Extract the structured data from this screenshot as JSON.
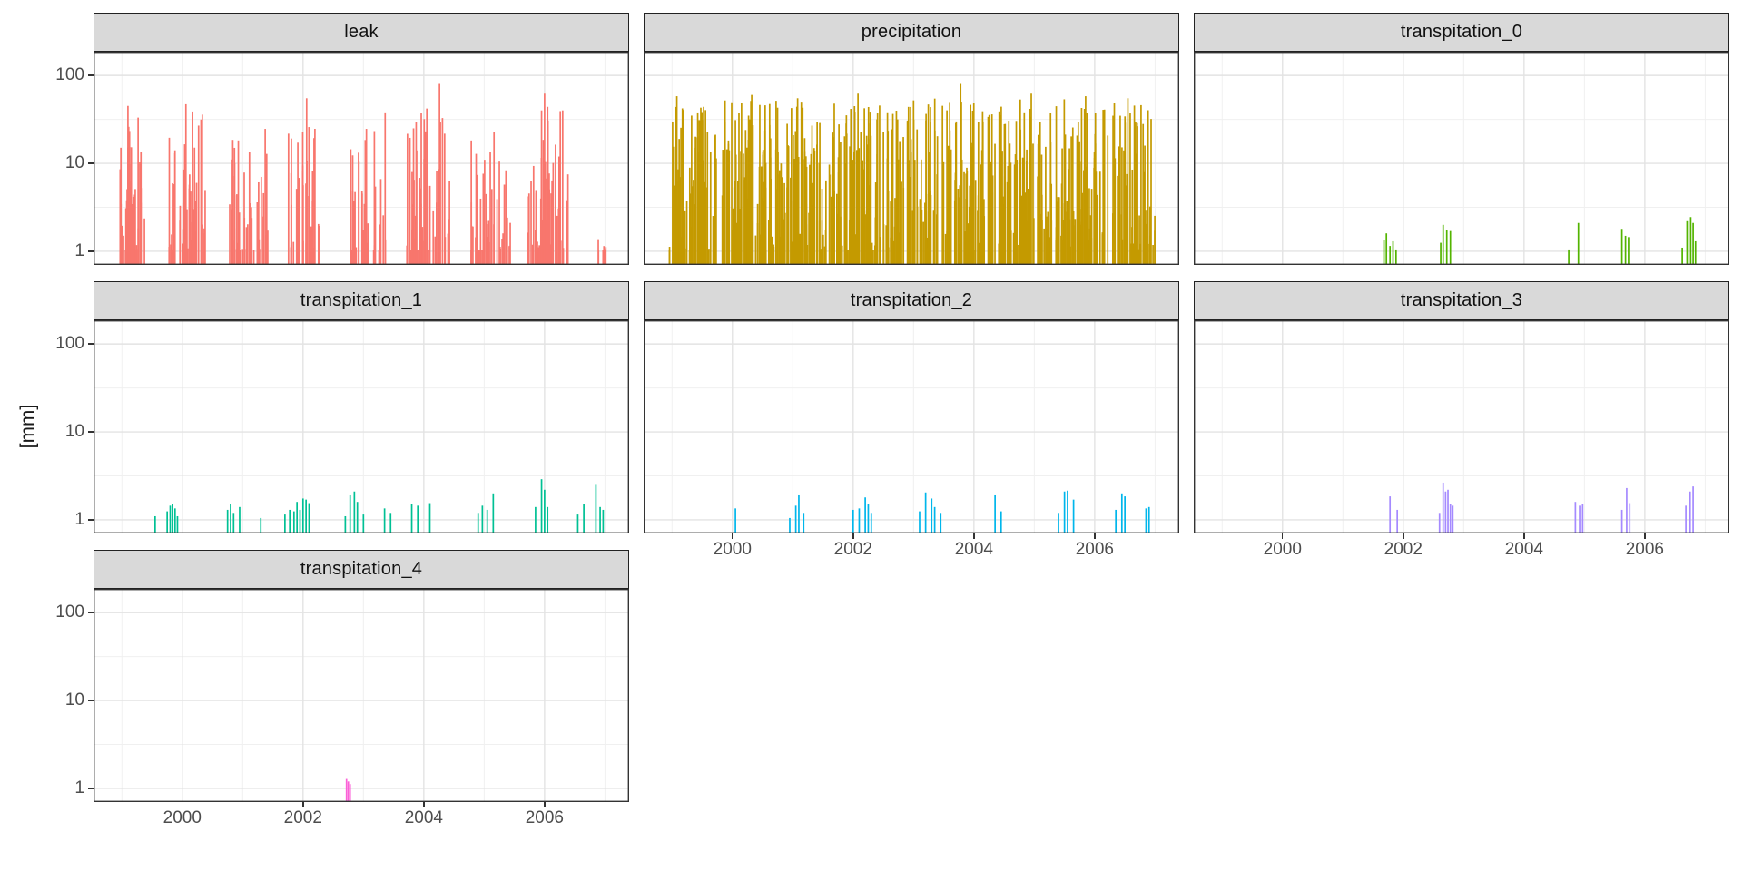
{
  "figure": {
    "y_axis_title": "[mm]",
    "y_tick_labels": [
      "100",
      "10",
      "1"
    ],
    "x_tick_labels": [
      "2000",
      "2002",
      "2004",
      "2006"
    ],
    "colors": {
      "strip_background": "#D9D9D9",
      "panel_border": "#333333",
      "grid_major": "#E3E3E3",
      "grid_minor": "#F0F0F0",
      "axis_text": "#4D4D4D",
      "tick_mark": "#333333"
    }
  },
  "chart_meta": {
    "type": "bar",
    "facet_layout": "wrap-3-columns",
    "x_domain": [
      1998.53,
      2007.4
    ],
    "x_major_breaks": [
      2000,
      2002,
      2004,
      2006
    ],
    "x_minor_breaks": [
      1999,
      2001,
      2003,
      2005,
      2007
    ],
    "y_scale": "log10",
    "y_domain": [
      0.7,
      186
    ],
    "y_major_breaks": [
      1,
      10,
      100
    ],
    "y_minor_breaks": [
      3.162,
      31.62
    ],
    "grid": true,
    "legend": "none"
  },
  "chart_data": [
    {
      "facet": "leak",
      "geom": "col",
      "color": "#F8766D",
      "mode": "clusters",
      "seed": 11,
      "height_shape": 1.7,
      "clusters": [
        [
          1998.95,
          1999.38,
          42,
          38
        ],
        [
          1999.78,
          2000.38,
          48,
          40
        ],
        [
          2000.78,
          2001.42,
          40,
          26
        ],
        [
          2001.75,
          2002.32,
          36,
          30
        ],
        [
          2002.78,
          2003.42,
          36,
          30
        ],
        [
          2003.72,
          2004.45,
          46,
          45
        ],
        [
          2004.78,
          2005.45,
          40,
          26
        ],
        [
          2005.72,
          2006.42,
          46,
          45
        ],
        [
          2006.88,
          2007.02,
          6,
          1.4
        ]
      ],
      "peaks": [
        [
          1999.1,
          45
        ],
        [
          2000.06,
          47
        ],
        [
          2002.06,
          55
        ],
        [
          2003.36,
          38
        ],
        [
          2004.26,
          80
        ],
        [
          2004.05,
          42
        ],
        [
          2005.95,
          40
        ],
        [
          2006.0,
          62
        ],
        [
          2006.3,
          40
        ]
      ]
    },
    {
      "facet": "precipitation",
      "geom": "col",
      "color": "#C49A00",
      "mode": "clusters",
      "seed": 7,
      "height_shape": 1.25,
      "clusters": [
        [
          1998.95,
          1999.75,
          70,
          45
        ],
        [
          1999.78,
          2000.7,
          80,
          55
        ],
        [
          2000.72,
          2001.55,
          75,
          58
        ],
        [
          2001.6,
          2002.45,
          80,
          55
        ],
        [
          2002.5,
          2003.4,
          80,
          55
        ],
        [
          2003.45,
          2004.35,
          80,
          52
        ],
        [
          2004.4,
          2005.3,
          80,
          58
        ],
        [
          2005.35,
          2006.25,
          80,
          58
        ],
        [
          2006.3,
          2007.0,
          65,
          50
        ]
      ],
      "peaks": [
        [
          1999.08,
          58
        ],
        [
          2000.32,
          60
        ],
        [
          2001.08,
          55
        ],
        [
          2002.08,
          62
        ],
        [
          2003.0,
          52
        ],
        [
          2003.78,
          80
        ],
        [
          2004.95,
          62
        ],
        [
          2005.85,
          58
        ],
        [
          2006.55,
          55
        ]
      ]
    },
    {
      "facet": "transpitation_0",
      "geom": "col",
      "color": "#53B400",
      "mode": "points",
      "bars": [
        [
          2001.68,
          1.35
        ],
        [
          2001.72,
          1.6
        ],
        [
          2001.78,
          1.15
        ],
        [
          2001.83,
          1.3
        ],
        [
          2001.88,
          1.05
        ],
        [
          2002.62,
          1.25
        ],
        [
          2002.66,
          2.0
        ],
        [
          2002.72,
          1.75
        ],
        [
          2002.78,
          1.7
        ],
        [
          2004.74,
          1.05
        ],
        [
          2004.9,
          2.1
        ],
        [
          2005.62,
          1.8
        ],
        [
          2005.68,
          1.5
        ],
        [
          2005.73,
          1.45
        ],
        [
          2006.62,
          1.1
        ],
        [
          2006.7,
          2.2
        ],
        [
          2006.76,
          2.45
        ],
        [
          2006.8,
          2.1
        ],
        [
          2006.84,
          1.3
        ]
      ]
    },
    {
      "facet": "transpitation_1",
      "geom": "col",
      "color": "#00C094",
      "mode": "points",
      "bars": [
        [
          1999.55,
          1.1
        ],
        [
          1999.75,
          1.25
        ],
        [
          1999.8,
          1.45
        ],
        [
          1999.84,
          1.5
        ],
        [
          1999.88,
          1.35
        ],
        [
          1999.92,
          1.1
        ],
        [
          2000.75,
          1.3
        ],
        [
          2000.8,
          1.5
        ],
        [
          2000.85,
          1.2
        ],
        [
          2000.95,
          1.4
        ],
        [
          2001.3,
          1.05
        ],
        [
          2001.7,
          1.15
        ],
        [
          2001.78,
          1.3
        ],
        [
          2001.85,
          1.25
        ],
        [
          2001.9,
          1.6
        ],
        [
          2001.95,
          1.3
        ],
        [
          2002.0,
          1.75
        ],
        [
          2002.05,
          1.7
        ],
        [
          2002.1,
          1.55
        ],
        [
          2002.7,
          1.1
        ],
        [
          2002.78,
          1.9
        ],
        [
          2002.85,
          2.1
        ],
        [
          2002.9,
          1.6
        ],
        [
          2003.0,
          1.15
        ],
        [
          2003.35,
          1.35
        ],
        [
          2003.45,
          1.2
        ],
        [
          2003.8,
          1.5
        ],
        [
          2003.9,
          1.45
        ],
        [
          2004.1,
          1.55
        ],
        [
          2004.9,
          1.2
        ],
        [
          2004.97,
          1.45
        ],
        [
          2005.05,
          1.3
        ],
        [
          2005.15,
          2.0
        ],
        [
          2005.85,
          1.4
        ],
        [
          2005.95,
          2.9
        ],
        [
          2006.0,
          2.2
        ],
        [
          2006.05,
          1.4
        ],
        [
          2006.55,
          1.15
        ],
        [
          2006.65,
          1.5
        ],
        [
          2006.85,
          2.5
        ],
        [
          2006.92,
          1.4
        ],
        [
          2006.97,
          1.3
        ]
      ]
    },
    {
      "facet": "transpitation_2",
      "geom": "col",
      "color": "#00B6EB",
      "mode": "points",
      "bars": [
        [
          2000.05,
          1.35
        ],
        [
          2000.95,
          1.05
        ],
        [
          2001.05,
          1.45
        ],
        [
          2001.1,
          1.9
        ],
        [
          2001.18,
          1.2
        ],
        [
          2002.0,
          1.3
        ],
        [
          2002.1,
          1.35
        ],
        [
          2002.2,
          1.8
        ],
        [
          2002.25,
          1.5
        ],
        [
          2002.3,
          1.2
        ],
        [
          2003.1,
          1.25
        ],
        [
          2003.2,
          2.05
        ],
        [
          2003.3,
          1.75
        ],
        [
          2003.35,
          1.4
        ],
        [
          2003.45,
          1.2
        ],
        [
          2004.35,
          1.9
        ],
        [
          2004.45,
          1.25
        ],
        [
          2005.4,
          1.2
        ],
        [
          2005.5,
          2.1
        ],
        [
          2005.55,
          2.15
        ],
        [
          2005.65,
          1.7
        ],
        [
          2006.35,
          1.3
        ],
        [
          2006.45,
          2.0
        ],
        [
          2006.5,
          1.85
        ],
        [
          2006.85,
          1.35
        ],
        [
          2006.9,
          1.4
        ]
      ]
    },
    {
      "facet": "transpitation_3",
      "geom": "col",
      "color": "#A58AFF",
      "mode": "points",
      "bars": [
        [
          2001.78,
          1.85
        ],
        [
          2001.9,
          1.3
        ],
        [
          2002.6,
          1.2
        ],
        [
          2002.66,
          2.65
        ],
        [
          2002.7,
          2.1
        ],
        [
          2002.74,
          2.2
        ],
        [
          2002.78,
          1.5
        ],
        [
          2002.82,
          1.45
        ],
        [
          2004.85,
          1.6
        ],
        [
          2004.92,
          1.45
        ],
        [
          2004.97,
          1.5
        ],
        [
          2005.62,
          1.3
        ],
        [
          2005.7,
          2.3
        ],
        [
          2005.75,
          1.55
        ],
        [
          2006.68,
          1.45
        ],
        [
          2006.75,
          2.1
        ],
        [
          2006.8,
          2.4
        ]
      ]
    },
    {
      "facet": "transpitation_4",
      "geom": "col",
      "color": "#FB61D7",
      "mode": "points",
      "bars": [
        [
          2002.72,
          1.28
        ],
        [
          2002.75,
          1.2
        ],
        [
          2002.78,
          1.12
        ]
      ]
    }
  ]
}
